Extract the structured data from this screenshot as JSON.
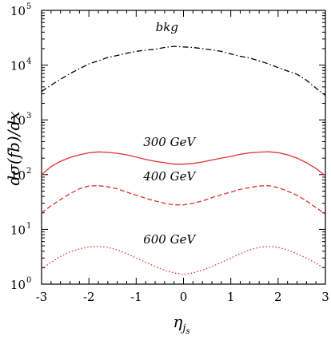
{
  "chart_data": {
    "type": "line",
    "title": "",
    "xlabel": "η_{j_s}",
    "xlabel_main": "η",
    "xlabel_sub": "j",
    "xlabel_subsub": "s",
    "ylabel": "dσ(fb)/dx",
    "xlim": [
      -3,
      3
    ],
    "ylim": [
      1,
      100000
    ],
    "yscale": "log",
    "grid": false,
    "legend": "none",
    "x_ticks": [
      "-3",
      "-2",
      "-1",
      "0",
      "1",
      "2",
      "3"
    ],
    "y_ticks": [
      {
        "base": "10",
        "exp": "0"
      },
      {
        "base": "10",
        "exp": "1"
      },
      {
        "base": "10",
        "exp": "2"
      },
      {
        "base": "10",
        "exp": "3"
      },
      {
        "base": "10",
        "exp": "4"
      },
      {
        "base": "10",
        "exp": "5"
      }
    ],
    "series": [
      {
        "name": "bkg",
        "color": "#000000",
        "style": "dashdot",
        "x": [
          -3,
          -2.8,
          -2.6,
          -2.4,
          -2.2,
          -2.0,
          -1.8,
          -1.6,
          -1.4,
          -1.2,
          -1.0,
          -0.8,
          -0.6,
          -0.4,
          -0.2,
          0.0,
          0.2,
          0.4,
          0.6,
          0.8,
          1.0,
          1.2,
          1.4,
          1.6,
          1.8,
          2.0,
          2.2,
          2.4,
          2.6,
          2.8,
          3.0
        ],
        "y": [
          3300,
          4300,
          5500,
          7000,
          8600,
          10500,
          12000,
          13800,
          15000,
          16500,
          17800,
          18800,
          19500,
          21000,
          22000,
          21500,
          21000,
          20000,
          19000,
          17800,
          16000,
          14500,
          13500,
          12000,
          10500,
          9000,
          7800,
          6800,
          5300,
          3800,
          2800
        ]
      },
      {
        "name": "300 GeV",
        "color": "#e03030",
        "style": "solid",
        "x": [
          -3,
          -2.8,
          -2.6,
          -2.4,
          -2.2,
          -2.0,
          -1.8,
          -1.6,
          -1.4,
          -1.2,
          -1.0,
          -0.8,
          -0.6,
          -0.4,
          -0.2,
          0.0,
          0.2,
          0.4,
          0.6,
          0.8,
          1.0,
          1.2,
          1.4,
          1.6,
          1.8,
          2.0,
          2.2,
          2.4,
          2.6,
          2.8,
          3.0
        ],
        "y": [
          100,
          140,
          175,
          205,
          230,
          250,
          260,
          255,
          245,
          230,
          210,
          190,
          175,
          165,
          155,
          155,
          160,
          170,
          185,
          200,
          215,
          235,
          250,
          258,
          262,
          252,
          230,
          200,
          165,
          130,
          95
        ]
      },
      {
        "name": "400 GeV",
        "color": "#e03030",
        "style": "dashed",
        "x": [
          -3,
          -2.8,
          -2.6,
          -2.4,
          -2.2,
          -2.0,
          -1.8,
          -1.6,
          -1.4,
          -1.2,
          -1.0,
          -0.8,
          -0.6,
          -0.4,
          -0.2,
          0.0,
          0.2,
          0.4,
          0.6,
          0.8,
          1.0,
          1.2,
          1.4,
          1.6,
          1.8,
          2.0,
          2.2,
          2.4,
          2.6,
          2.8,
          3.0
        ],
        "y": [
          20,
          27,
          35,
          45,
          55,
          62,
          63,
          60,
          55,
          48,
          42,
          37,
          33,
          30,
          28,
          28,
          30,
          33,
          38,
          43,
          48,
          54,
          58,
          62,
          63,
          58,
          50,
          42,
          33,
          25,
          19
        ]
      },
      {
        "name": "600 GeV",
        "color": "#e03030",
        "style": "dotted",
        "x": [
          -3,
          -2.8,
          -2.6,
          -2.4,
          -2.2,
          -2.0,
          -1.8,
          -1.6,
          -1.4,
          -1.2,
          -1.0,
          -0.8,
          -0.6,
          -0.4,
          -0.2,
          0.0,
          0.2,
          0.4,
          0.6,
          0.8,
          1.0,
          1.2,
          1.4,
          1.6,
          1.8,
          2.0,
          2.2,
          2.4,
          2.6,
          2.8,
          3.0
        ],
        "y": [
          1.9,
          2.5,
          3.2,
          3.9,
          4.4,
          4.8,
          4.9,
          4.7,
          4.2,
          3.6,
          3.0,
          2.5,
          2.1,
          1.8,
          1.6,
          1.5,
          1.6,
          1.8,
          2.1,
          2.5,
          3.0,
          3.6,
          4.2,
          4.7,
          4.9,
          4.7,
          4.2,
          3.6,
          3.0,
          2.4,
          1.9
        ]
      }
    ],
    "annotations": [
      {
        "text": "bkg",
        "x": -0.35,
        "y": 42000
      },
      {
        "text": "300 GeV",
        "x": -0.3,
        "y": 330
      },
      {
        "text": "400 GeV",
        "x": -0.3,
        "y": 78
      },
      {
        "text": "600 GeV",
        "x": -0.3,
        "y": 5.5
      }
    ]
  }
}
